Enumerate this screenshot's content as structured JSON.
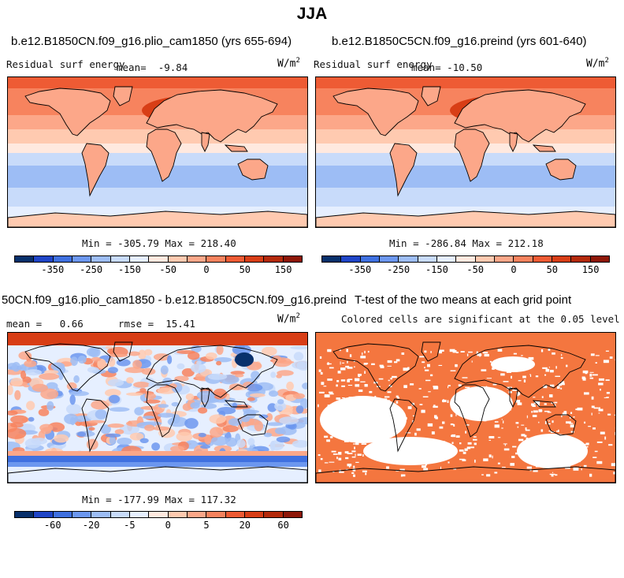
{
  "title": "JJA",
  "colors": [
    "#08306b",
    "#1f45c7",
    "#3f70e0",
    "#6c97ef",
    "#9dbdf5",
    "#c8dbfa",
    "#e6efff",
    "#ffe9df",
    "#ffcab0",
    "#fca789",
    "#f7835e",
    "#ee5b34",
    "#d83e16",
    "#b42a0b",
    "#8e1708"
  ],
  "panels": [
    {
      "id": "plio",
      "title": "b.e12.B1850CN.f09_g16.plio_cam1850 (yrs 655-694)",
      "variable": "Residual surf energy",
      "mean_label": "mean=",
      "mean": "-9.84",
      "units_base": "W/m",
      "units_exp": "2",
      "min_label": "Min =",
      "min": "-305.79",
      "max_label": "Max =",
      "max": "218.40",
      "ticks": [
        "-350",
        "-250",
        "-150",
        "-50",
        "0",
        "50",
        "150"
      ]
    },
    {
      "id": "preind",
      "title": "b.e12.B1850C5CN.f09_g16.preind (yrs 601-640)",
      "variable": "Residual surf energy",
      "mean_label": "mean=",
      "mean": "-10.50",
      "units_base": "W/m",
      "units_exp": "2",
      "min_label": "Min =",
      "min": "-286.84",
      "max_label": "Max =",
      "max": "212.18",
      "ticks": [
        "-350",
        "-250",
        "-150",
        "-50",
        "0",
        "50",
        "150"
      ]
    },
    {
      "id": "diff",
      "title": "50CN.f09_g16.plio_cam1850 - b.e12.B1850C5CN.f09_g16.preind",
      "mean_label": "mean =",
      "mean": "0.66",
      "rmse_label": "rmse =",
      "rmse": "15.41",
      "units_base": "W/m",
      "units_exp": "2",
      "min_label": "Min =",
      "min": "-177.99",
      "max_label": "Max =",
      "max": "117.32",
      "ticks": [
        "-60",
        "-20",
        "-5",
        "0",
        "5",
        "20",
        "60"
      ]
    },
    {
      "id": "ttest",
      "title": "T-test of the two means at each grid point",
      "subtitle": "Colored cells are significant at the 0.05 level",
      "fill_color": "#f4763f"
    }
  ]
}
